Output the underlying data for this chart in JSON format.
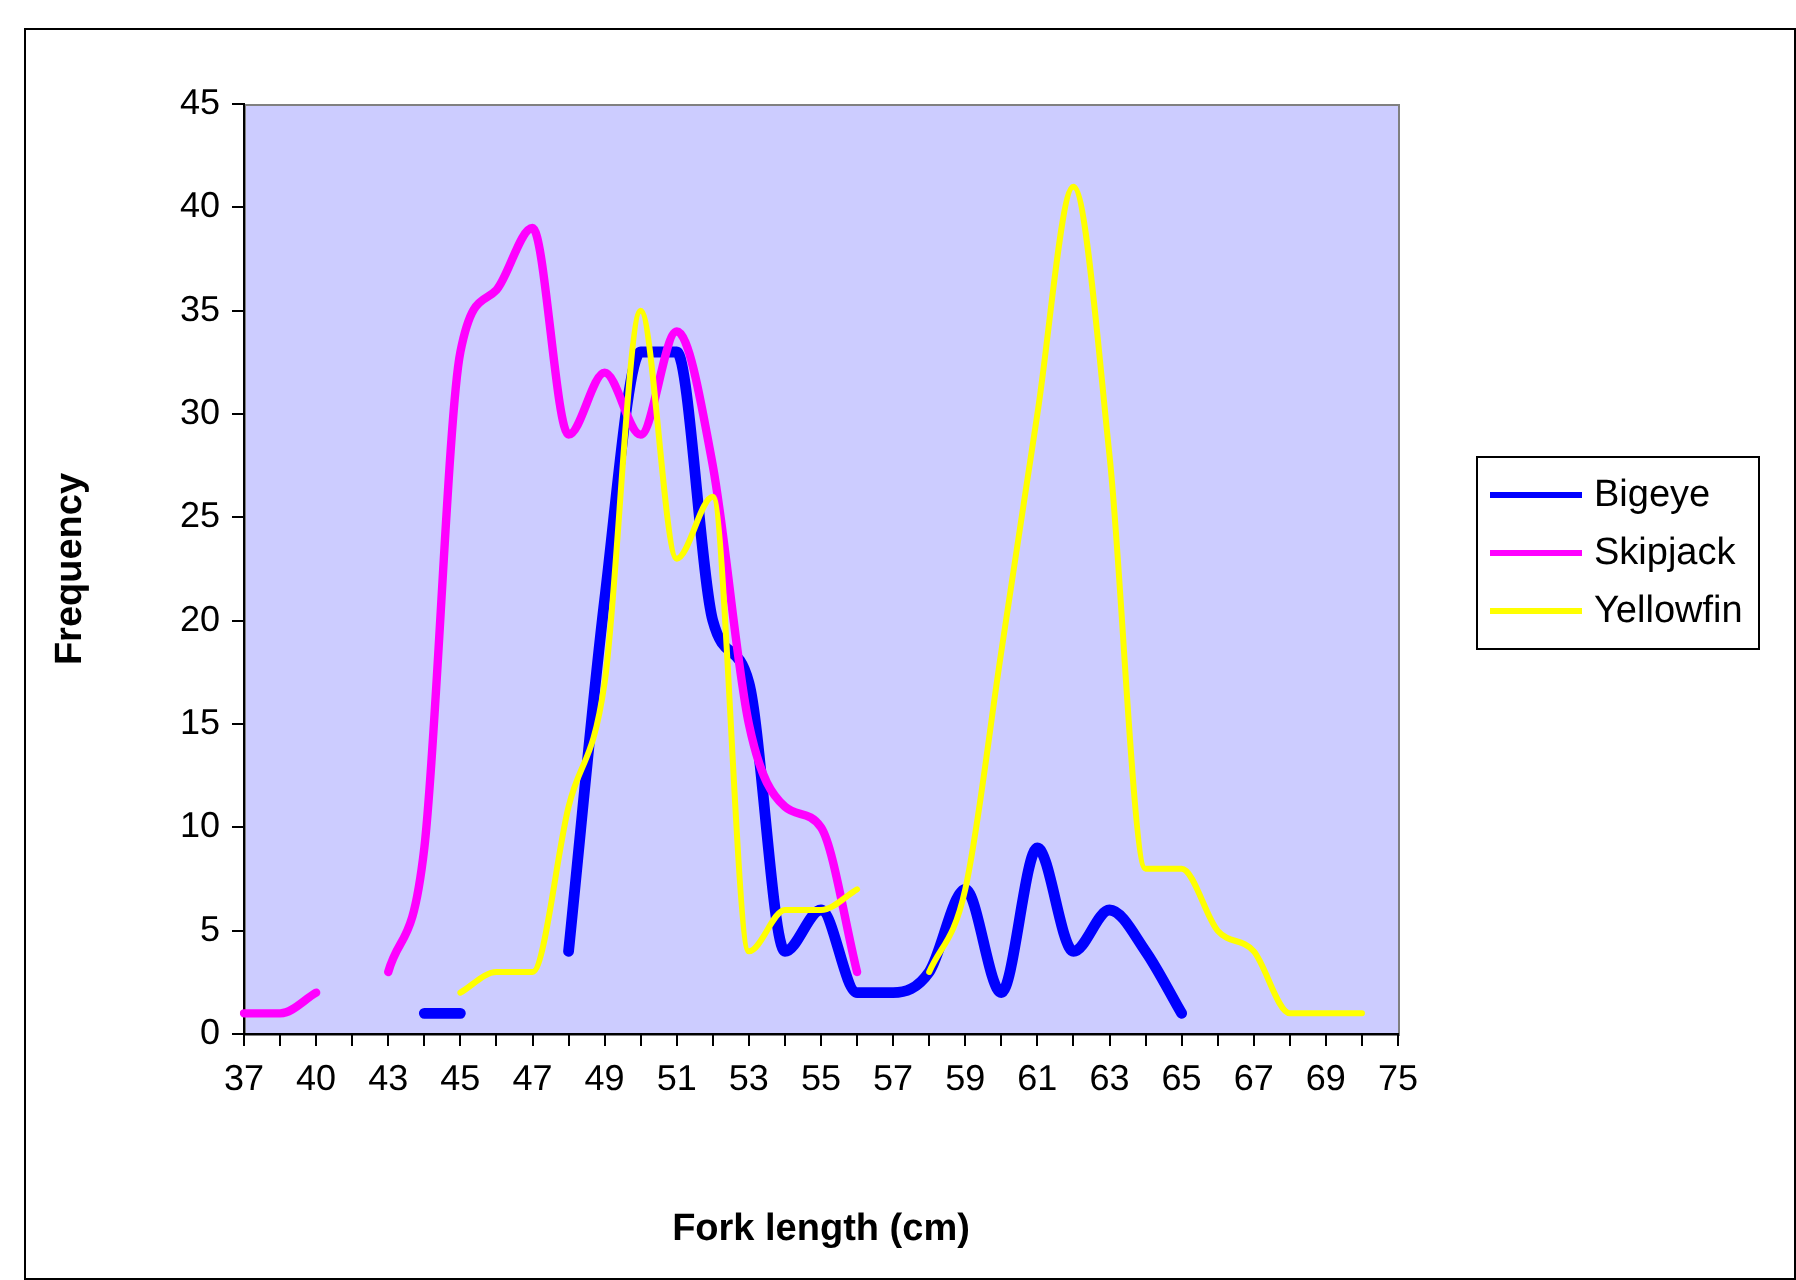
{
  "chart_data": {
    "type": "line",
    "xlabel": "Fork length (cm)",
    "ylabel": "Frequency",
    "categories": [
      "37",
      null,
      "40",
      null,
      "43",
      null,
      "45",
      null,
      "47",
      null,
      "49",
      null,
      "51",
      null,
      "53",
      null,
      "55",
      null,
      "57",
      null,
      "59",
      null,
      "61",
      null,
      "63",
      null,
      "65",
      null,
      "67",
      null,
      "69",
      null,
      "75"
    ],
    "series": [
      {
        "name": "Bigeye",
        "color": "#0000ff",
        "values": [
          null,
          null,
          null,
          null,
          null,
          1,
          1,
          null,
          null,
          4,
          21,
          33,
          33,
          20,
          17,
          4,
          6,
          2,
          2,
          3,
          7,
          2,
          9,
          4,
          6,
          4,
          1,
          null,
          null,
          null,
          null,
          null,
          null
        ]
      },
      {
        "name": "Skipjack",
        "color": "#ff00ff",
        "values": [
          1,
          1,
          2,
          null,
          3,
          9,
          33,
          36,
          39,
          29,
          32,
          29,
          34,
          27.5,
          15,
          11,
          10,
          3,
          null,
          null,
          null,
          null,
          null,
          null,
          null,
          null,
          null,
          null,
          null,
          null,
          null,
          null,
          null
        ]
      },
      {
        "name": "Yellowfin",
        "color": "#ffff00",
        "values": [
          null,
          null,
          null,
          null,
          null,
          null,
          2,
          3,
          3,
          11,
          17,
          35,
          23,
          26,
          4,
          6,
          6,
          7,
          null,
          3,
          7,
          18.5,
          30,
          41,
          28,
          8,
          8,
          5,
          4,
          1,
          1,
          1,
          null
        ]
      }
    ],
    "ylim": [
      0,
      45
    ],
    "yticks": [
      0,
      5,
      10,
      15,
      20,
      25,
      30,
      35,
      40,
      45
    ],
    "grid": false,
    "legend": "right",
    "marker": "none",
    "line_style": "solid"
  }
}
